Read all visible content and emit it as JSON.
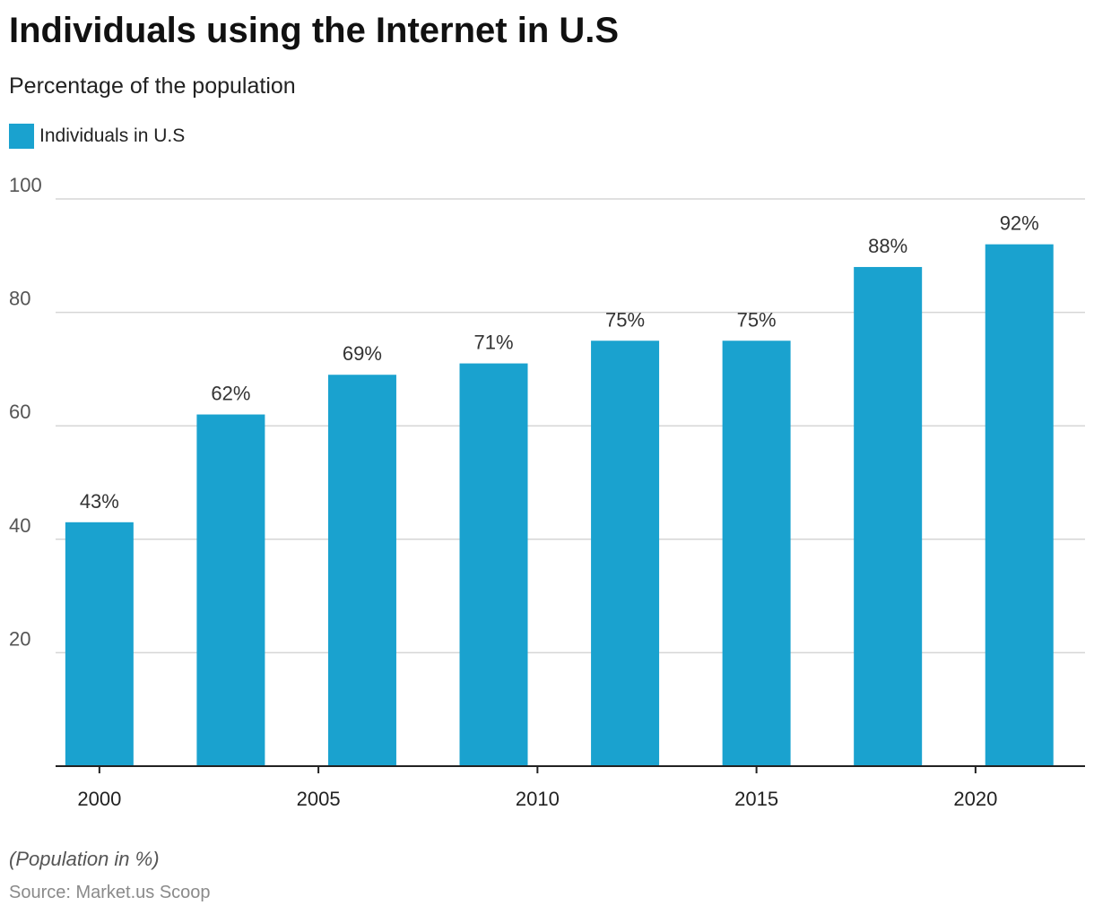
{
  "chart_data": {
    "type": "bar",
    "title": "Individuals using the Internet in U.S",
    "subtitle": "Percentage of the population",
    "legend": {
      "placement": "top-left"
    },
    "series": [
      {
        "name": "Individuals in U.S",
        "color": "#1aa2cf",
        "values": [
          43,
          62,
          69,
          71,
          75,
          75,
          88,
          92
        ],
        "labels": [
          "43%",
          "62%",
          "69%",
          "71%",
          "75%",
          "75%",
          "88%",
          "92%"
        ]
      }
    ],
    "x": [
      2000,
      2003,
      2006,
      2009,
      2012,
      2015,
      2018,
      2021
    ],
    "x_ticks": [
      "2000",
      "2005",
      "2010",
      "2015",
      "2020"
    ],
    "x_tick_values": [
      2000,
      2005,
      2010,
      2015,
      2020
    ],
    "y_ticks": [
      "20",
      "40",
      "60",
      "80",
      "100"
    ],
    "y_tick_values": [
      20,
      40,
      60,
      80,
      100
    ],
    "ylim": [
      0,
      100
    ],
    "grid": true,
    "footnote": "(Population in %)",
    "source": "Source: Market.us Scoop"
  }
}
